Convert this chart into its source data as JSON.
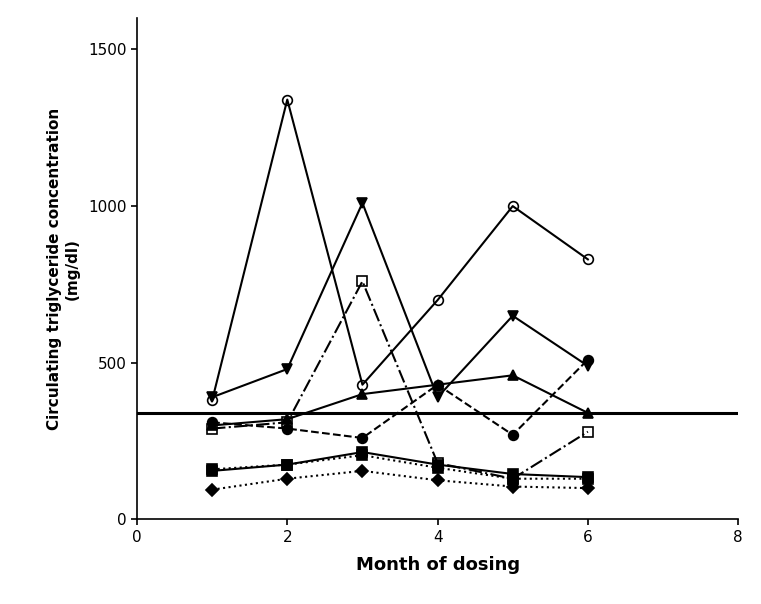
{
  "xlabel": "Month of dosing",
  "ylabel": "Circulating triglyceride concentration\n(mg/dl)",
  "xlim": [
    0,
    8
  ],
  "ylim": [
    0,
    1600
  ],
  "yticks": [
    0,
    500,
    1000,
    1500
  ],
  "xticks": [
    0,
    2,
    4,
    6,
    8
  ],
  "reference_line_y": 340,
  "series": [
    {
      "name": "open_circle_solid",
      "x": [
        1,
        2,
        3,
        4,
        5,
        6
      ],
      "y": [
        380,
        1340,
        430,
        700,
        1000,
        830
      ],
      "marker": "o",
      "markersize": 7,
      "linestyle": "-",
      "fillstyle": "none",
      "linewidth": 1.5
    },
    {
      "name": "filled_circle_dashed",
      "x": [
        1,
        2,
        3,
        4,
        5,
        6
      ],
      "y": [
        310,
        290,
        260,
        430,
        270,
        510
      ],
      "marker": "o",
      "markersize": 7,
      "linestyle": "--",
      "fillstyle": "full",
      "linewidth": 1.5
    },
    {
      "name": "down_triangle_solid",
      "x": [
        1,
        2,
        3,
        4,
        5,
        6
      ],
      "y": [
        390,
        480,
        1010,
        390,
        650,
        490
      ],
      "marker": "v",
      "markersize": 7,
      "linestyle": "-",
      "fillstyle": "full",
      "linewidth": 1.5
    },
    {
      "name": "up_triangle_solid",
      "x": [
        1,
        2,
        3,
        4,
        5,
        6
      ],
      "y": [
        300,
        320,
        400,
        430,
        460,
        340
      ],
      "marker": "^",
      "markersize": 7,
      "linestyle": "-",
      "fillstyle": "full",
      "linewidth": 1.5
    },
    {
      "name": "open_square_dashdot",
      "x": [
        1,
        2,
        3,
        4,
        5,
        6
      ],
      "y": [
        290,
        310,
        760,
        180,
        130,
        280
      ],
      "marker": "s",
      "markersize": 7,
      "linestyle": "-.",
      "fillstyle": "none",
      "linewidth": 1.5
    },
    {
      "name": "filled_square_solid",
      "x": [
        1,
        2,
        3,
        4,
        5,
        6
      ],
      "y": [
        155,
        175,
        215,
        175,
        145,
        135
      ],
      "marker": "s",
      "markersize": 7,
      "linestyle": "-",
      "fillstyle": "full",
      "linewidth": 1.5
    },
    {
      "name": "filled_square_dotted",
      "x": [
        1,
        2,
        3,
        4,
        5,
        6
      ],
      "y": [
        160,
        175,
        205,
        165,
        130,
        130
      ],
      "marker": "s",
      "markersize": 7,
      "linestyle": ":",
      "fillstyle": "full",
      "linewidth": 1.5
    },
    {
      "name": "diamond_dotted",
      "x": [
        1,
        2,
        3,
        4,
        5,
        6
      ],
      "y": [
        95,
        130,
        155,
        125,
        105,
        100
      ],
      "marker": "D",
      "markersize": 6,
      "linestyle": ":",
      "fillstyle": "full",
      "linewidth": 1.5
    }
  ]
}
